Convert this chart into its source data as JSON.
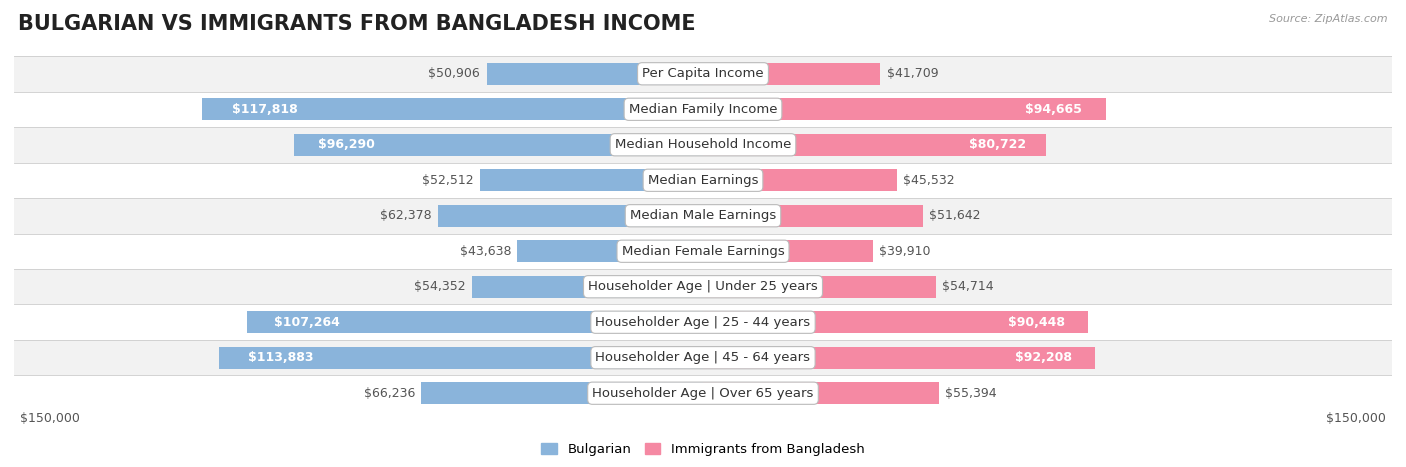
{
  "title": "BULGARIAN VS IMMIGRANTS FROM BANGLADESH INCOME",
  "source": "Source: ZipAtlas.com",
  "categories": [
    "Per Capita Income",
    "Median Family Income",
    "Median Household Income",
    "Median Earnings",
    "Median Male Earnings",
    "Median Female Earnings",
    "Householder Age | Under 25 years",
    "Householder Age | 25 - 44 years",
    "Householder Age | 45 - 64 years",
    "Householder Age | Over 65 years"
  ],
  "bulgarian_values": [
    50906,
    117818,
    96290,
    52512,
    62378,
    43638,
    54352,
    107264,
    113883,
    66236
  ],
  "bangladesh_values": [
    41709,
    94665,
    80722,
    45532,
    51642,
    39910,
    54714,
    90448,
    92208,
    55394
  ],
  "bulgarian_labels": [
    "$50,906",
    "$117,818",
    "$96,290",
    "$52,512",
    "$62,378",
    "$43,638",
    "$54,352",
    "$107,264",
    "$113,883",
    "$66,236"
  ],
  "bangladesh_labels": [
    "$41,709",
    "$94,665",
    "$80,722",
    "$45,532",
    "$51,642",
    "$39,910",
    "$54,714",
    "$90,448",
    "$92,208",
    "$55,394"
  ],
  "bulgarian_color": "#8ab4db",
  "bangladesh_color": "#f589a3",
  "bg_row_colors": [
    "#f2f2f2",
    "#ffffff"
  ],
  "axis_limit": 150000,
  "bar_height": 0.62,
  "legend_bulgarian": "Bulgarian",
  "legend_bangladesh": "Immigrants from Bangladesh",
  "xlabel_left": "$150,000",
  "xlabel_right": "$150,000",
  "title_fontsize": 15,
  "label_fontsize": 9,
  "category_fontsize": 9.5,
  "axis_label_fontsize": 9,
  "inside_label_threshold": 0.45,
  "source_fontsize": 8
}
